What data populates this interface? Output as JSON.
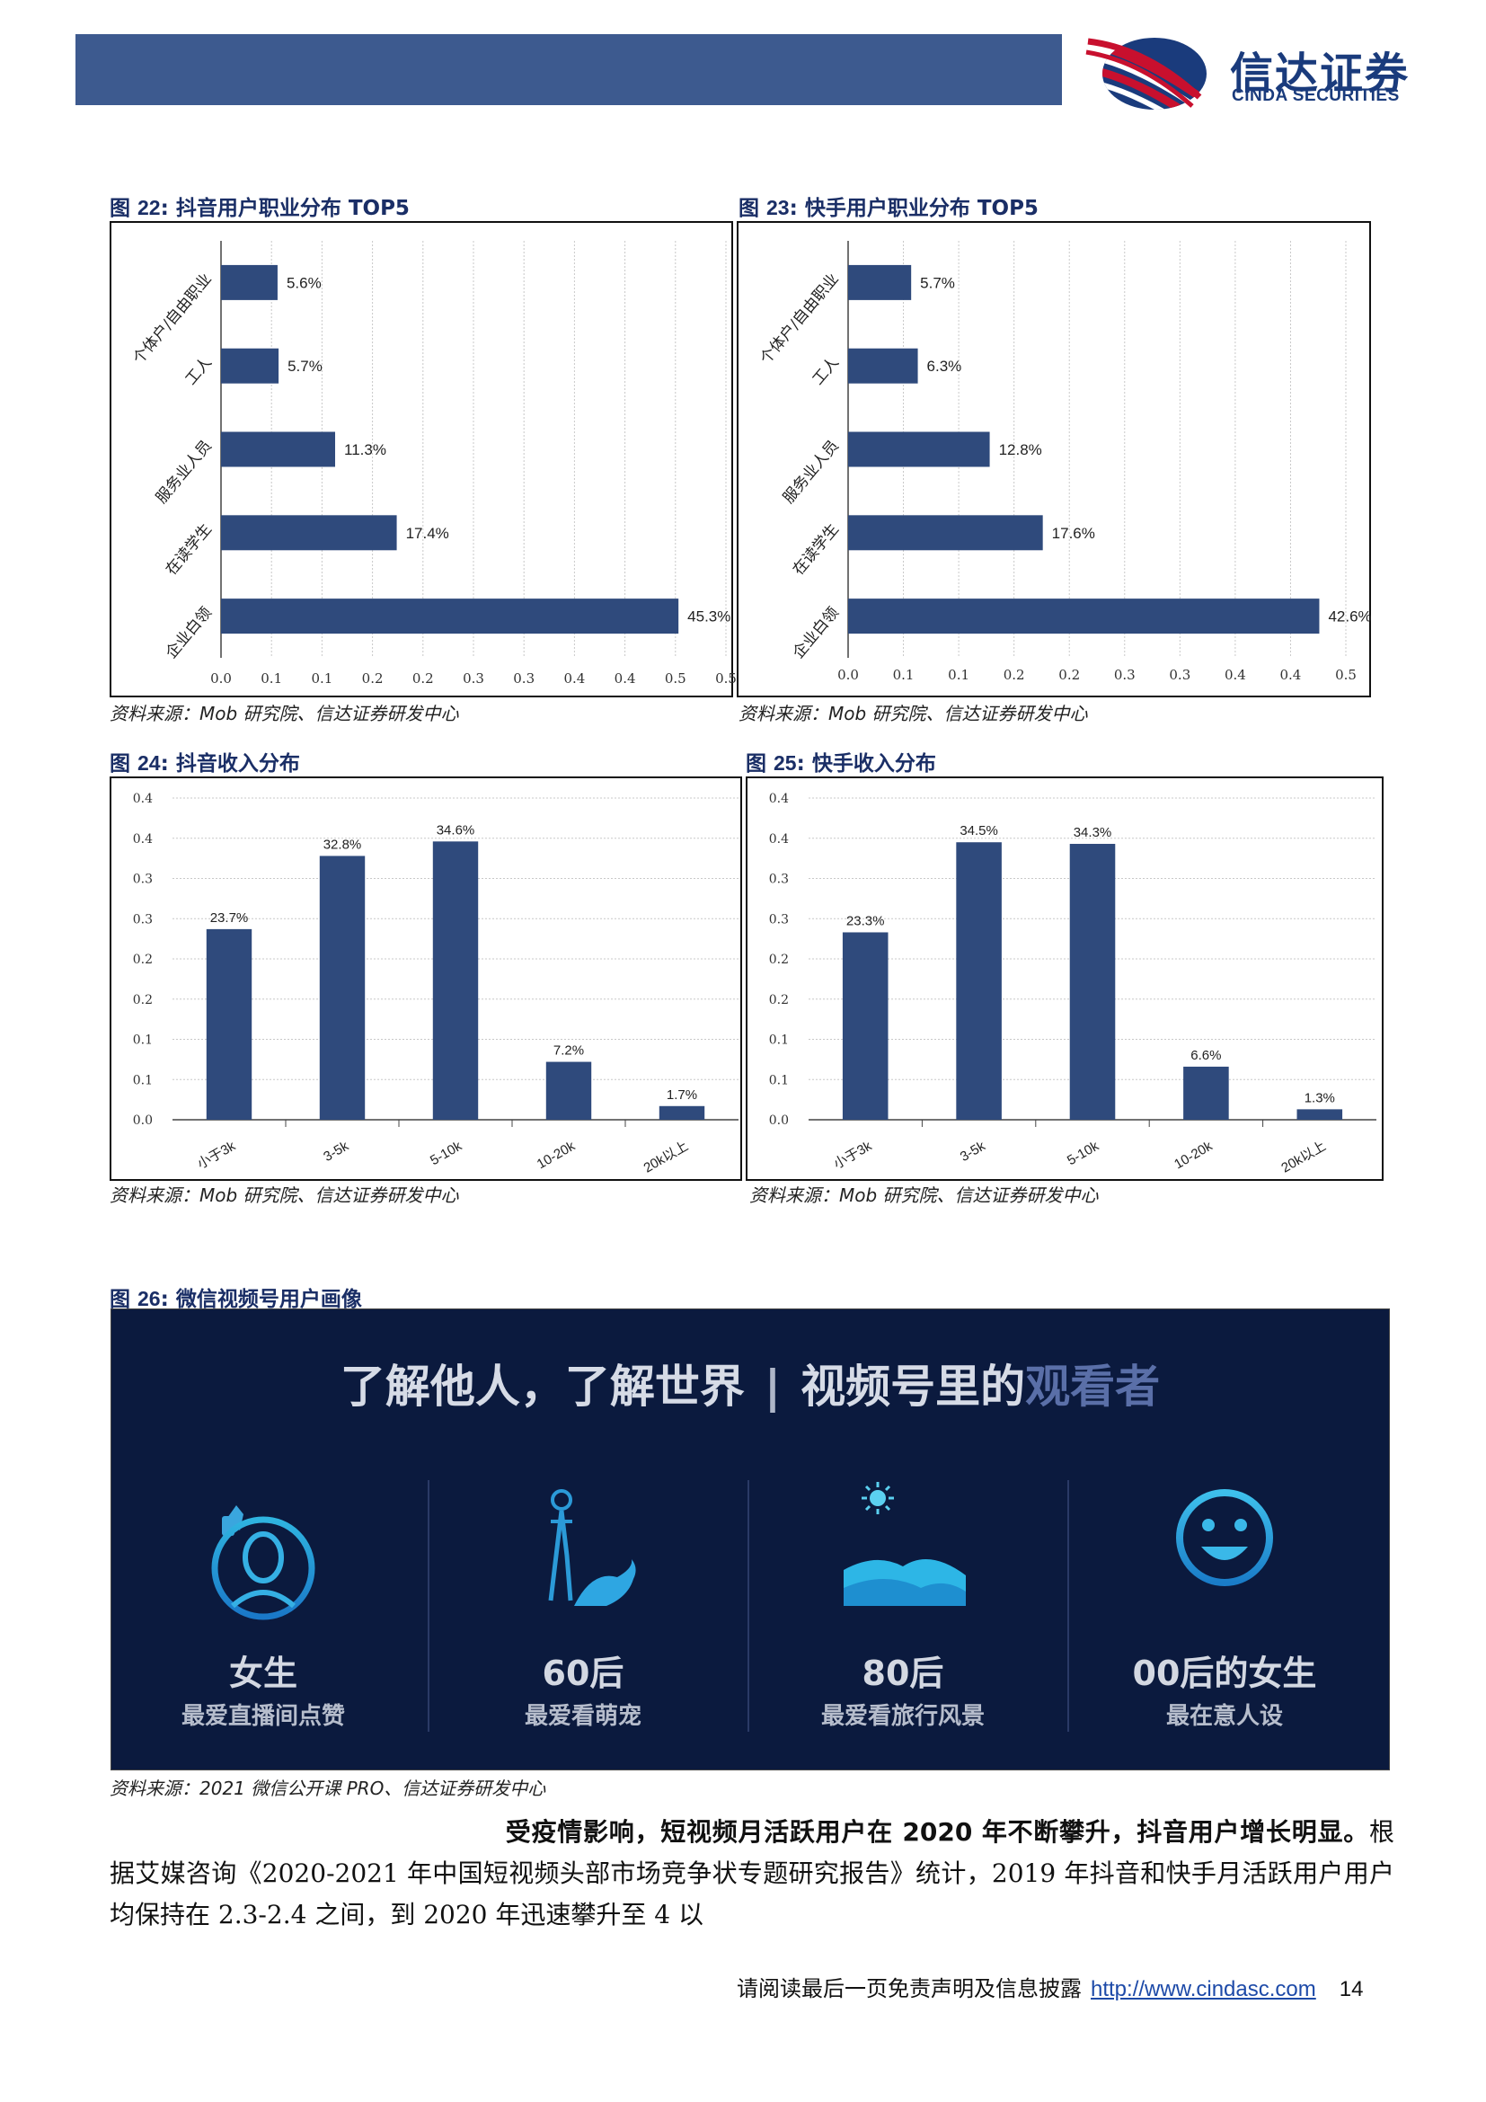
{
  "header": {
    "logo_cn": "信达证券",
    "logo_en": "CINDA SECURITIES",
    "bar_color": "#3d5a8f",
    "brand_color": "#1a3b7c",
    "accent_red": "#c8102e"
  },
  "figures": {
    "fig22": {
      "prefix": "图 ",
      "num": "22",
      "title": ":  抖音用户职业分布 TOP5",
      "source": "资料来源：Mob 研究院、信达证券研发中心"
    },
    "fig23": {
      "prefix": "图 ",
      "num": "23",
      "title": ":  快手用户职业分布 TOP5",
      "source": "资料来源：Mob 研究院、信达证券研发中心"
    },
    "fig24": {
      "prefix": "图 ",
      "num": "24",
      "title": ":  抖音收入分布",
      "source": "资料来源：Mob 研究院、信达证券研发中心"
    },
    "fig25": {
      "prefix": "图 ",
      "num": "25",
      "title": ":  快手收入分布",
      "source": "资料来源：Mob 研究院、信达证券研发中心"
    },
    "fig26": {
      "prefix": "图 ",
      "num": "26",
      "title": ":  微信视频号用户画像",
      "source": "资料来源：2021 微信公开课 PRO、信达证券研发中心"
    }
  },
  "chart_data": [
    {
      "id": "fig22",
      "type": "bar",
      "orientation": "horizontal",
      "categories": [
        "个体户/自由职业",
        "工人",
        "服务业人员",
        "在读学生",
        "企业白领"
      ],
      "values": [
        0.056,
        0.057,
        0.113,
        0.174,
        0.453
      ],
      "data_labels": [
        "5.6%",
        "5.7%",
        "11.3%",
        "17.4%",
        "45.3%"
      ],
      "x_tick_labels": [
        "0.0",
        "0.1",
        "0.1",
        "0.2",
        "0.2",
        "0.3",
        "0.3",
        "0.4",
        "0.4",
        "0.5",
        "0.5"
      ],
      "xlim": [
        0,
        0.5
      ],
      "grid": true,
      "color": "#2f4a7c"
    },
    {
      "id": "fig23",
      "type": "bar",
      "orientation": "horizontal",
      "categories": [
        "个体户/自由职业",
        "工人",
        "服务业人员",
        "在读学生",
        "企业白领"
      ],
      "values": [
        0.057,
        0.063,
        0.128,
        0.176,
        0.426
      ],
      "data_labels": [
        "5.7%",
        "6.3%",
        "12.8%",
        "17.6%",
        "42.6%"
      ],
      "x_tick_labels": [
        "0.0",
        "0.1",
        "0.1",
        "0.2",
        "0.2",
        "0.3",
        "0.3",
        "0.4",
        "0.4",
        "0.5"
      ],
      "xlim": [
        0,
        0.45
      ],
      "grid": true,
      "color": "#2f4a7c"
    },
    {
      "id": "fig24",
      "type": "bar",
      "orientation": "vertical",
      "categories": [
        "小于3k",
        "3-5k",
        "5-10k",
        "10-20k",
        "20k以上"
      ],
      "values": [
        0.237,
        0.328,
        0.346,
        0.072,
        0.017
      ],
      "data_labels": [
        "23.7%",
        "32.8%",
        "34.6%",
        "7.2%",
        "1.7%"
      ],
      "y_tick_labels": [
        "0.0",
        "0.1",
        "0.1",
        "0.2",
        "0.2",
        "0.3",
        "0.3",
        "0.4",
        "0.4"
      ],
      "ylim": [
        0,
        0.4
      ],
      "grid": true,
      "color": "#2f4a7c"
    },
    {
      "id": "fig25",
      "type": "bar",
      "orientation": "vertical",
      "categories": [
        "小于3k",
        "3-5k",
        "5-10k",
        "10-20k",
        "20k以上"
      ],
      "values": [
        0.233,
        0.345,
        0.343,
        0.066,
        0.013
      ],
      "data_labels": [
        "23.3%",
        "34.5%",
        "34.3%",
        "6.6%",
        "1.3%"
      ],
      "y_tick_labels": [
        "0.0",
        "0.1",
        "0.1",
        "0.2",
        "0.2",
        "0.3",
        "0.3",
        "0.4",
        "0.4"
      ],
      "ylim": [
        0,
        0.4
      ],
      "grid": true,
      "color": "#2f4a7c"
    }
  ],
  "banner": {
    "title_main": "了解他人，了解世界",
    "title_sep": "|",
    "title_pre": "视频号里的",
    "title_hl": "观看者",
    "personas": [
      {
        "icon": "female-avatar-icon",
        "title": "女生",
        "subtitle": "最爱直播间点赞"
      },
      {
        "icon": "elder-with-dog-icon",
        "title": "60后",
        "subtitle": "最爱看萌宠"
      },
      {
        "icon": "landscape-icon",
        "title": "80后",
        "subtitle": "最爱看旅行风景"
      },
      {
        "icon": "smiley-icon",
        "title": "00后的女生",
        "subtitle": "最在意人设"
      }
    ]
  },
  "body": {
    "bold_lead": "受疫情影响，短视频月活跃用户在 2020 年不断攀升，抖音用户增长明显。",
    "text": "根据艾媒咨询《2020-2021 年中国短视频头部市场竞争状专题研究报告》统计，2019 年抖音和快手月活跃用户用户均保持在 2.3-2.4 之间，到 2020 年迅速攀升至 4 以"
  },
  "footer": {
    "disclaimer": "请阅读最后一页免责声明及信息披露",
    "url": "http://www.cindasc.com",
    "page": "14"
  }
}
